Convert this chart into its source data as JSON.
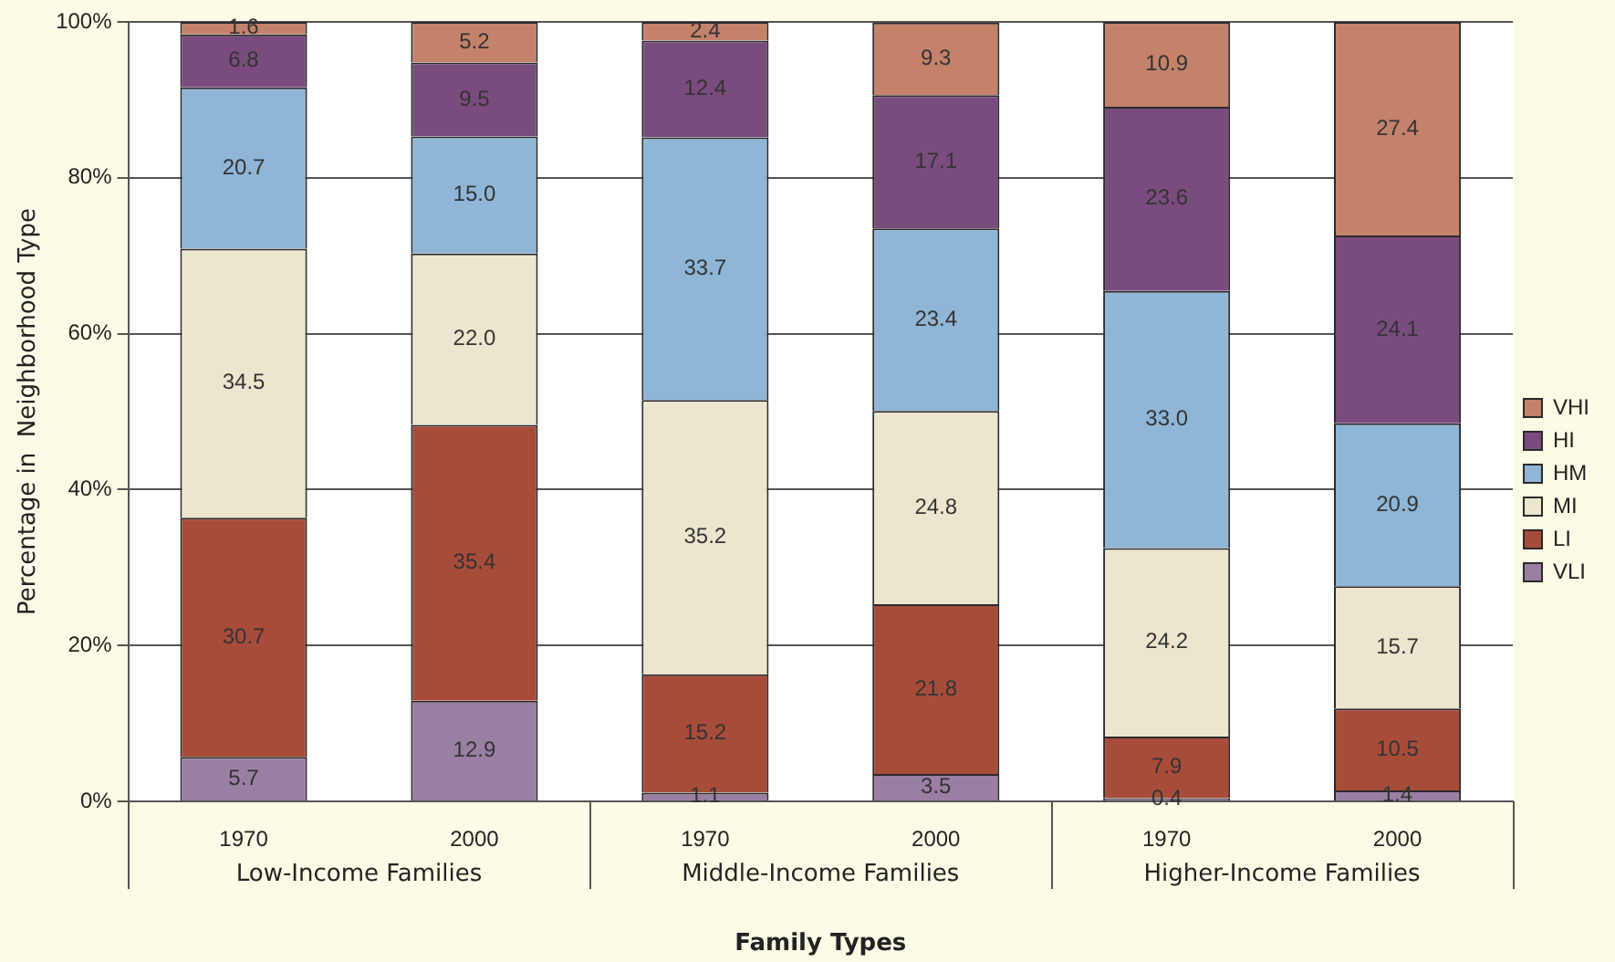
{
  "chart_data": {
    "type": "bar",
    "stacked": true,
    "xlabel": "Family Types",
    "ylabel": "Percentage in  Neighborhood Type",
    "categories": [
      "1970",
      "2000",
      "1970",
      "2000",
      "1970",
      "2000"
    ],
    "annotations": [
      "Low-Income Families",
      "Middle-Income Families",
      "Higher-Income Families"
    ],
    "series": [
      {
        "name": "VLI",
        "color": "#9b7fa3",
        "values": [
          5.7,
          12.9,
          1.1,
          3.5,
          0.4,
          1.4
        ],
        "value_labels": [
          "5.7",
          "12.9",
          "1.1",
          "3.5",
          "0.4",
          "1.4"
        ]
      },
      {
        "name": "LI",
        "color": "#a84c3a",
        "values": [
          30.7,
          35.4,
          15.2,
          21.8,
          7.9,
          10.5
        ],
        "value_labels": [
          "30.7",
          "35.4",
          "15.2",
          "21.8",
          "7.9",
          "10.5"
        ]
      },
      {
        "name": "MI",
        "color": "#ede6cf",
        "values": [
          34.5,
          22,
          35.2,
          24.8,
          24.2,
          15.7
        ],
        "value_labels": [
          "34.5",
          "22.0",
          "35.2",
          "24.8",
          "24.2",
          "15.7"
        ]
      },
      {
        "name": "HM",
        "color": "#8fb6d6",
        "values": [
          20.7,
          15,
          33.7,
          23.4,
          33,
          20.9
        ],
        "value_labels": [
          "20.7",
          "15.0",
          "33.7",
          "23.4",
          "33.0",
          "20.9"
        ]
      },
      {
        "name": "HI",
        "color": "#7a4c7e",
        "values": [
          6.8,
          9.5,
          12.4,
          17.1,
          23.6,
          24.1
        ],
        "value_labels": [
          "6.8",
          "9.5",
          "12.4",
          "17.1",
          "23.6",
          "24.1"
        ]
      },
      {
        "name": "VHI",
        "color": "#c4826b",
        "values": [
          1.6,
          5.2,
          2.4,
          9.3,
          10.9,
          27.4
        ],
        "value_labels": [
          "1.6",
          "5.2",
          "2.4",
          "9.3",
          "10.9",
          "27.4"
        ]
      }
    ],
    "ylim": [
      0,
      100
    ],
    "yticks": [
      {
        "value": 0,
        "label": "0%"
      },
      {
        "value": 20,
        "label": "20%"
      },
      {
        "value": 40,
        "label": "40%"
      },
      {
        "value": 60,
        "label": "60%"
      },
      {
        "value": 80,
        "label": "80%"
      },
      {
        "value": 100,
        "label": "100%"
      }
    ],
    "grid": "y",
    "legend": "right"
  }
}
